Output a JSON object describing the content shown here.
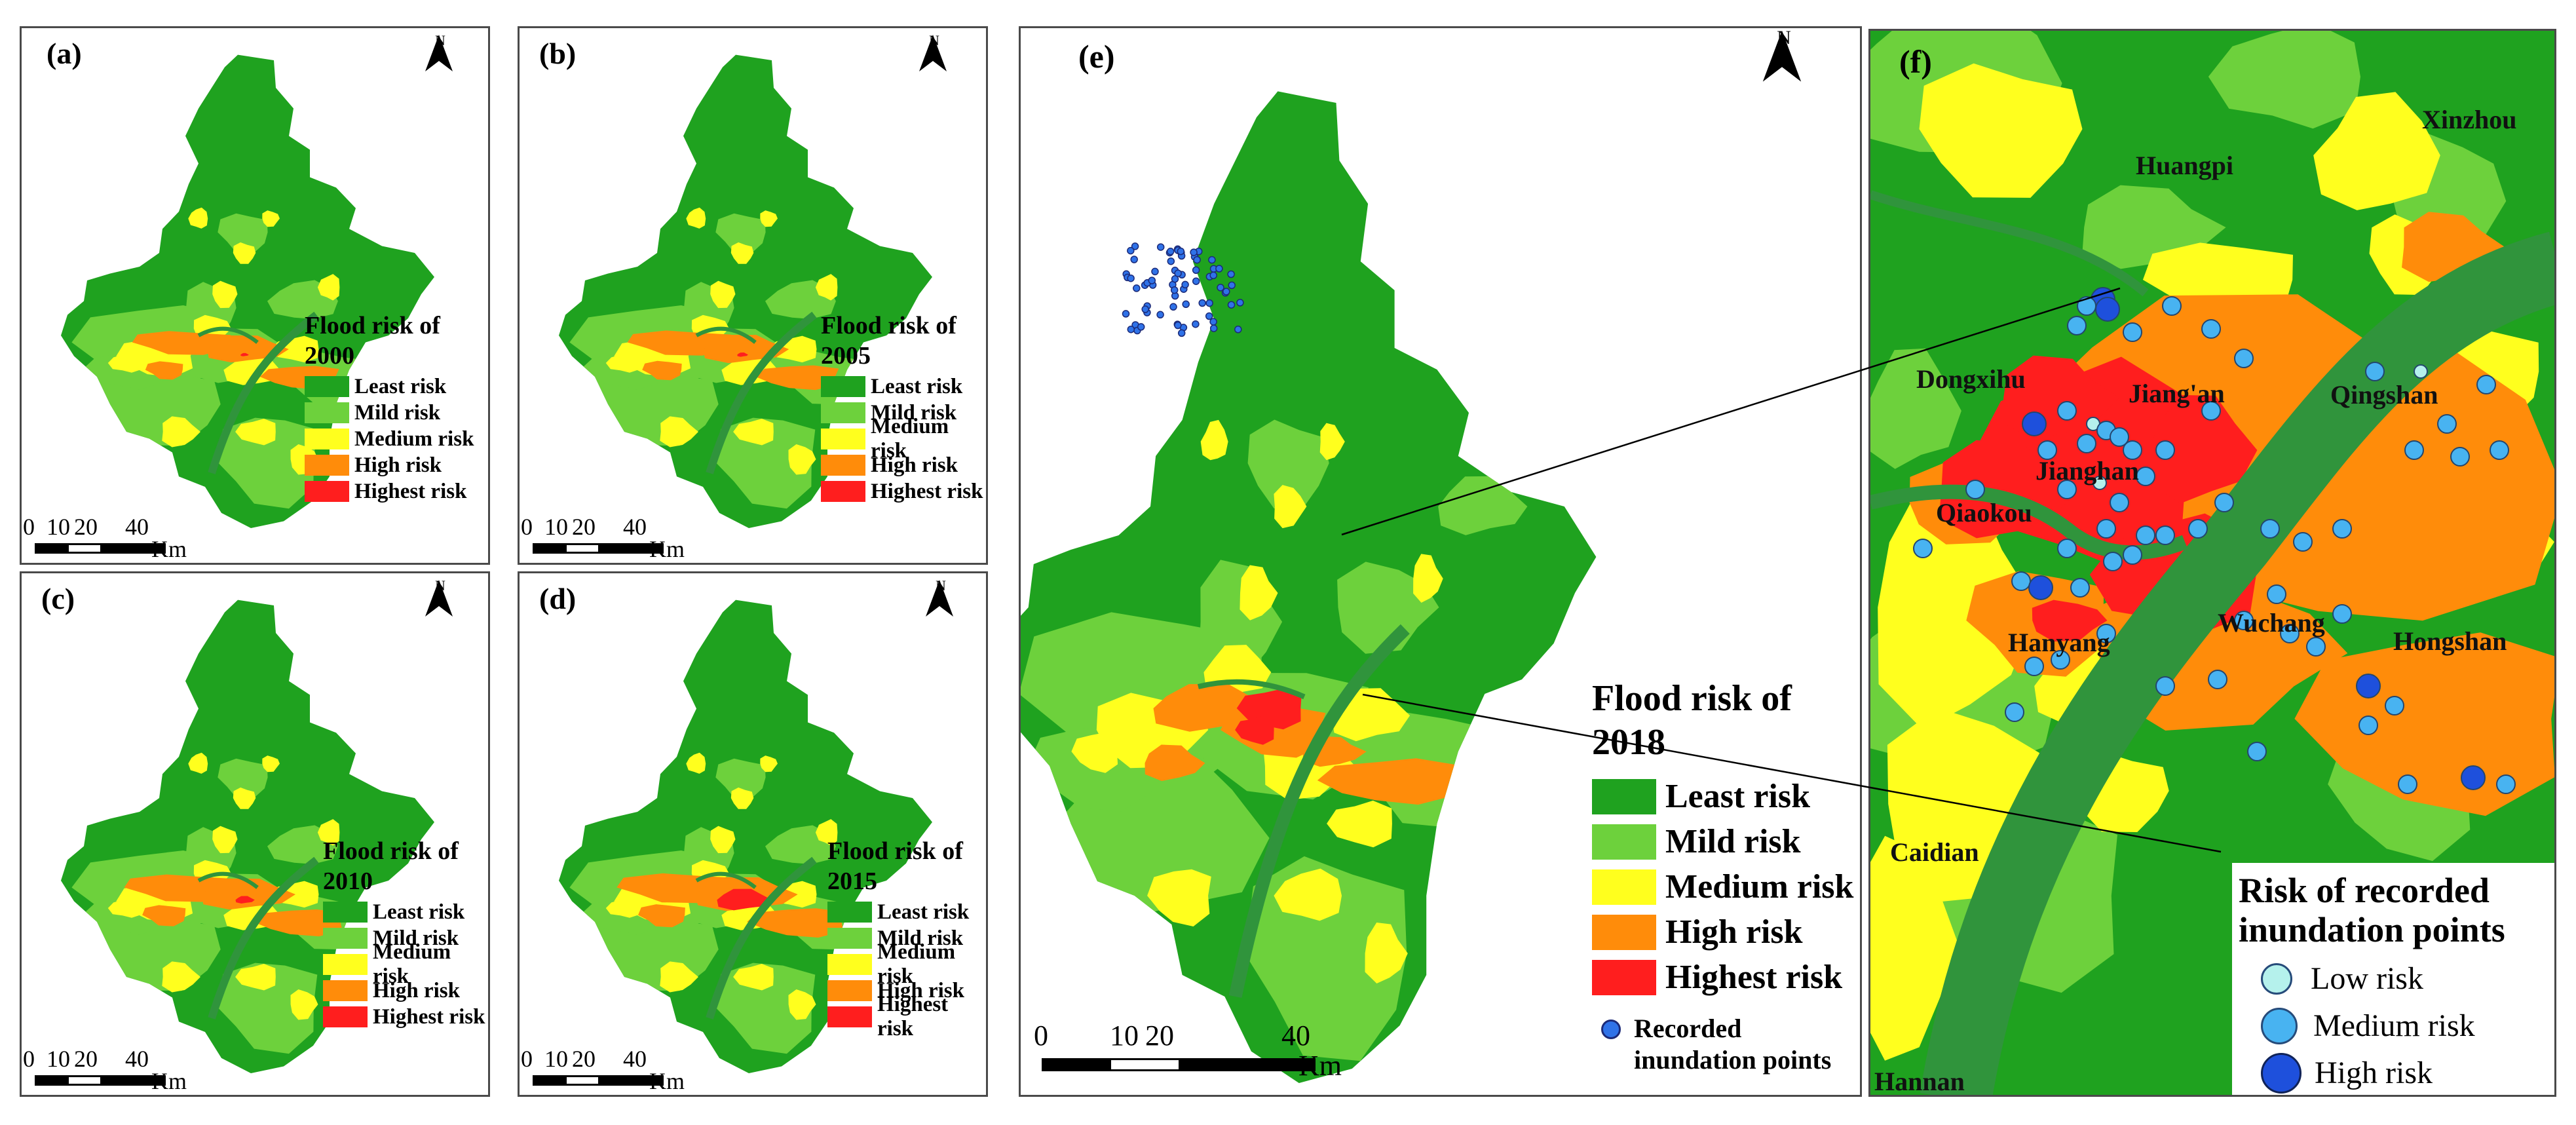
{
  "colors": {
    "least": "#1fa21f",
    "mild": "#6dd13c",
    "medium": "#ffff1e",
    "high": "#ff8c0a",
    "highest": "#ff1e1e",
    "river": "#30943c",
    "point_low": "#b5f1ec",
    "point_medium": "#48b3f1",
    "point_high": "#1e50dc"
  },
  "north_label": "N",
  "small_panels": [
    {
      "label": "(a)",
      "title_line1": "Flood risk of",
      "title_line2": "2000"
    },
    {
      "label": "(b)",
      "title_line1": "Flood risk of",
      "title_line2": "2005"
    },
    {
      "label": "(c)",
      "title_line1": "Flood risk of",
      "title_line2": "2010"
    },
    {
      "label": "(d)",
      "title_line1": "Flood risk of",
      "title_line2": "2015"
    }
  ],
  "risk_classes": [
    "Least risk",
    "Mild risk",
    "Medium risk",
    "High risk",
    "Highest risk"
  ],
  "scale_small": {
    "ticks": [
      "0",
      "10",
      "20",
      "40"
    ],
    "unit": "Km"
  },
  "panel_e": {
    "label": "(e)",
    "title_line1": "Flood risk of",
    "title_line2": "2018",
    "points_legend": "Recorded\ninundation points",
    "scale": {
      "ticks": [
        "0",
        "10",
        "20",
        "40"
      ],
      "unit": "Km"
    }
  },
  "panel_f": {
    "label": "(f)",
    "places": [
      "Xinzhou",
      "Huangpi",
      "Dongxihu",
      "Jiang'an",
      "Qingshan",
      "Jianghan",
      "Qiaokou",
      "Hanyang",
      "Wuchang",
      "Hongshan",
      "Caidian",
      "Hannan"
    ],
    "legend_title_line1": "Risk of recorded",
    "legend_title_line2": "inundation points",
    "legend_items": [
      "Low risk",
      "Medium risk",
      "High risk"
    ]
  }
}
